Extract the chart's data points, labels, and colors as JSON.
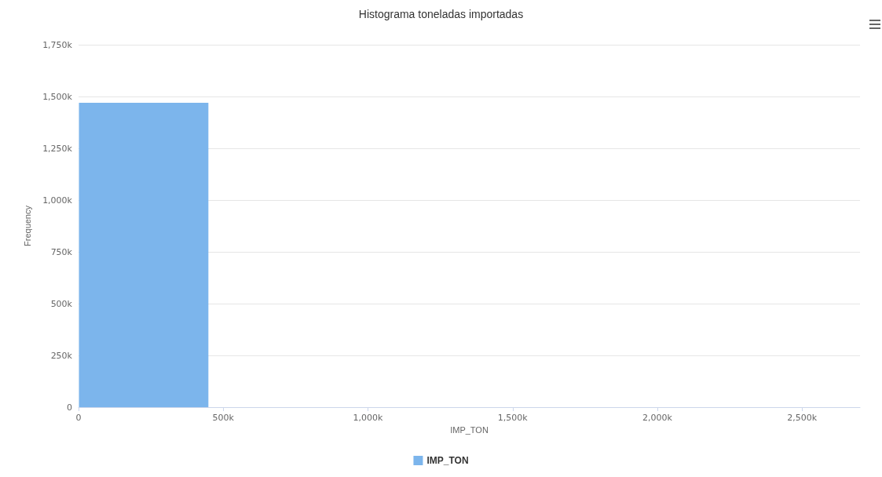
{
  "chart_data": {
    "type": "histogram",
    "title": "Histograma toneladas importadas",
    "xlabel": "IMP_TON",
    "ylabel": "Frequency",
    "bins": [
      0,
      450000,
      900000,
      1350000,
      1800000,
      2250000,
      2700000
    ],
    "series": [
      {
        "name": "IMP_TON",
        "color": "#7cb5ec",
        "values": [
          1470000,
          0,
          0,
          0,
          0,
          0
        ]
      }
    ],
    "xlim": [
      0,
      2700000
    ],
    "xticks": [
      0,
      {
        "value": 500000,
        "label": "500k"
      },
      {
        "value": 1000000,
        "label": "1,000k"
      },
      {
        "value": 1500000,
        "label": "1,500k"
      },
      {
        "value": 2000000,
        "label": "2,000k"
      },
      {
        "value": 2500000,
        "label": "2,500k"
      }
    ],
    "ylim": [
      0,
      1750000
    ],
    "yticks": [
      0,
      {
        "value": 250000,
        "label": "250k"
      },
      {
        "value": 500000,
        "label": "500k"
      },
      {
        "value": 750000,
        "label": "750k"
      },
      {
        "value": 1000000,
        "label": "1,000k"
      },
      {
        "value": 1250000,
        "label": "1,250k"
      },
      {
        "value": 1500000,
        "label": "1,500k"
      },
      {
        "value": 1750000,
        "label": "1,750k"
      }
    ],
    "grid": "y",
    "legend": "bottom"
  }
}
